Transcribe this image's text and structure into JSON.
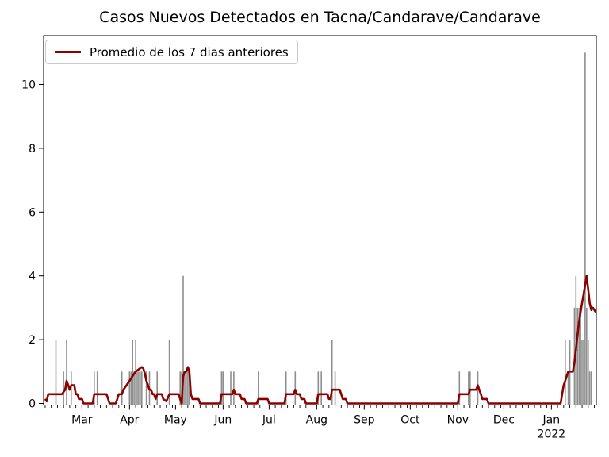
{
  "figure": {
    "title": "Casos Nuevos Detectados en Tacna/Candarave/Candarave"
  },
  "legend": {
    "label": "Promedio de los 7 dias anteriores"
  },
  "chart_data": {
    "type": "bar",
    "overlay_type": "line",
    "title": "Casos Nuevos Detectados en Tacna/Candarave/Candarave",
    "legend_entries": [
      "Promedio de los 7 dias anteriores"
    ],
    "legend_position": "upper left",
    "grid": false,
    "colors": {
      "bars": "#8e8e8e",
      "line": "#8b0000",
      "axes": "#000000"
    },
    "x_axis": {
      "start": "2021-02-04",
      "end": "2022-01-30",
      "major_ticks": [
        {
          "date": "2021-03-01",
          "label": "Mar"
        },
        {
          "date": "2021-04-01",
          "label": "Apr"
        },
        {
          "date": "2021-05-01",
          "label": "May"
        },
        {
          "date": "2021-06-01",
          "label": "Jun"
        },
        {
          "date": "2021-07-01",
          "label": "Jul"
        },
        {
          "date": "2021-08-01",
          "label": "Aug"
        },
        {
          "date": "2021-09-01",
          "label": "Sep"
        },
        {
          "date": "2021-10-01",
          "label": "Oct"
        },
        {
          "date": "2021-11-01",
          "label": "Nov"
        },
        {
          "date": "2021-12-01",
          "label": "Dec"
        },
        {
          "date": "2022-01-01",
          "label": "Jan",
          "year_label": "2022"
        }
      ],
      "minor_tick_days_of_month": [
        5,
        9,
        13,
        17,
        21,
        25,
        29
      ]
    },
    "y_axis": {
      "ticks": [
        0,
        2,
        4,
        6,
        8,
        10
      ],
      "lim": [
        -0.1,
        11.55
      ]
    },
    "series": [
      {
        "id": "daily-cases-bars",
        "type": "bar",
        "color": "#8e8e8e",
        "points": [
          [
            "2021-02-12",
            2
          ],
          [
            "2021-02-17",
            1
          ],
          [
            "2021-02-19",
            2
          ],
          [
            "2021-02-22",
            1
          ],
          [
            "2021-03-09",
            1
          ],
          [
            "2021-03-11",
            1
          ],
          [
            "2021-03-27",
            1
          ],
          [
            "2021-04-01",
            1
          ],
          [
            "2021-04-02",
            1
          ],
          [
            "2021-04-03",
            2
          ],
          [
            "2021-04-04",
            1
          ],
          [
            "2021-04-05",
            2
          ],
          [
            "2021-04-06",
            1
          ],
          [
            "2021-04-07",
            1
          ],
          [
            "2021-04-08",
            1
          ],
          [
            "2021-04-09",
            1
          ],
          [
            "2021-04-12",
            1
          ],
          [
            "2021-04-14",
            1
          ],
          [
            "2021-04-19",
            1
          ],
          [
            "2021-04-27",
            2
          ],
          [
            "2021-05-04",
            1
          ],
          [
            "2021-05-05",
            1
          ],
          [
            "2021-05-06",
            4
          ],
          [
            "2021-05-07",
            1
          ],
          [
            "2021-05-08",
            1
          ],
          [
            "2021-05-09",
            1
          ],
          [
            "2021-05-10",
            1
          ],
          [
            "2021-05-31",
            1
          ],
          [
            "2021-06-01",
            1
          ],
          [
            "2021-06-06",
            1
          ],
          [
            "2021-06-08",
            1
          ],
          [
            "2021-06-24",
            1
          ],
          [
            "2021-07-12",
            1
          ],
          [
            "2021-07-18",
            1
          ],
          [
            "2021-08-02",
            1
          ],
          [
            "2021-08-04",
            1
          ],
          [
            "2021-08-11",
            2
          ],
          [
            "2021-08-13",
            1
          ],
          [
            "2021-11-02",
            1
          ],
          [
            "2021-11-08",
            1
          ],
          [
            "2021-11-09",
            1
          ],
          [
            "2021-11-14",
            1
          ],
          [
            "2022-01-10",
            2
          ],
          [
            "2022-01-12",
            1
          ],
          [
            "2022-01-13",
            2
          ],
          [
            "2022-01-16",
            3
          ],
          [
            "2022-01-17",
            4
          ],
          [
            "2022-01-18",
            3
          ],
          [
            "2022-01-19",
            3
          ],
          [
            "2022-01-20",
            3
          ],
          [
            "2022-01-21",
            2
          ],
          [
            "2022-01-22",
            2
          ],
          [
            "2022-01-23",
            11
          ],
          [
            "2022-01-24",
            3
          ],
          [
            "2022-01-25",
            2
          ],
          [
            "2022-01-26",
            1
          ],
          [
            "2022-01-27",
            1
          ]
        ]
      },
      {
        "id": "avg-7-day-line",
        "name": "Promedio de los 7 dias anteriores",
        "type": "line",
        "color": "#8b0000",
        "points": [
          [
            "2021-02-05",
            0.14
          ],
          [
            "2021-02-06",
            0.07
          ],
          [
            "2021-02-07",
            0.29
          ],
          [
            "2021-02-16",
            0.29
          ],
          [
            "2021-02-18",
            0.43
          ],
          [
            "2021-02-19",
            0.71
          ],
          [
            "2021-02-20",
            0.57
          ],
          [
            "2021-02-21",
            0.43
          ],
          [
            "2021-02-22",
            0.57
          ],
          [
            "2021-02-24",
            0.57
          ],
          [
            "2021-02-25",
            0.29
          ],
          [
            "2021-02-26",
            0.29
          ],
          [
            "2021-02-27",
            0.14
          ],
          [
            "2021-03-01",
            0.14
          ],
          [
            "2021-03-02",
            0.0
          ],
          [
            "2021-03-08",
            0.0
          ],
          [
            "2021-03-09",
            0.29
          ],
          [
            "2021-03-17",
            0.29
          ],
          [
            "2021-03-18",
            0.14
          ],
          [
            "2021-03-19",
            0.0
          ],
          [
            "2021-03-23",
            0.0
          ],
          [
            "2021-03-24",
            0.14
          ],
          [
            "2021-03-25",
            0.29
          ],
          [
            "2021-03-27",
            0.29
          ],
          [
            "2021-03-28",
            0.43
          ],
          [
            "2021-03-30",
            0.57
          ],
          [
            "2021-04-01",
            0.71
          ],
          [
            "2021-04-03",
            0.86
          ],
          [
            "2021-04-05",
            1.0
          ],
          [
            "2021-04-07",
            1.07
          ],
          [
            "2021-04-09",
            1.14
          ],
          [
            "2021-04-10",
            1.1
          ],
          [
            "2021-04-11",
            0.93
          ],
          [
            "2021-04-12",
            0.71
          ],
          [
            "2021-04-13",
            0.57
          ],
          [
            "2021-04-14",
            0.43
          ],
          [
            "2021-04-15",
            0.43
          ],
          [
            "2021-04-16",
            0.29
          ],
          [
            "2021-04-17",
            0.29
          ],
          [
            "2021-04-18",
            0.14
          ],
          [
            "2021-04-19",
            0.29
          ],
          [
            "2021-04-22",
            0.29
          ],
          [
            "2021-04-23",
            0.14
          ],
          [
            "2021-04-25",
            0.07
          ],
          [
            "2021-04-27",
            0.29
          ],
          [
            "2021-05-03",
            0.29
          ],
          [
            "2021-05-04",
            0.14
          ],
          [
            "2021-05-05",
            0.0
          ],
          [
            "2021-05-06",
            0.86
          ],
          [
            "2021-05-07",
            1.0
          ],
          [
            "2021-05-08",
            1.0
          ],
          [
            "2021-05-09",
            1.14
          ],
          [
            "2021-05-10",
            1.0
          ],
          [
            "2021-05-11",
            0.29
          ],
          [
            "2021-05-12",
            0.14
          ],
          [
            "2021-05-16",
            0.14
          ],
          [
            "2021-05-17",
            0.0
          ],
          [
            "2021-05-30",
            0.0
          ],
          [
            "2021-05-31",
            0.29
          ],
          [
            "2021-06-07",
            0.29
          ],
          [
            "2021-06-08",
            0.43
          ],
          [
            "2021-06-09",
            0.29
          ],
          [
            "2021-06-12",
            0.29
          ],
          [
            "2021-06-13",
            0.14
          ],
          [
            "2021-06-15",
            0.14
          ],
          [
            "2021-06-16",
            0.0
          ],
          [
            "2021-06-23",
            0.0
          ],
          [
            "2021-06-24",
            0.14
          ],
          [
            "2021-06-30",
            0.14
          ],
          [
            "2021-07-01",
            0.0
          ],
          [
            "2021-07-11",
            0.0
          ],
          [
            "2021-07-12",
            0.29
          ],
          [
            "2021-07-17",
            0.29
          ],
          [
            "2021-07-18",
            0.43
          ],
          [
            "2021-07-19",
            0.29
          ],
          [
            "2021-07-21",
            0.29
          ],
          [
            "2021-07-22",
            0.14
          ],
          [
            "2021-07-24",
            0.14
          ],
          [
            "2021-07-25",
            0.0
          ],
          [
            "2021-08-01",
            0.0
          ],
          [
            "2021-08-02",
            0.29
          ],
          [
            "2021-08-08",
            0.29
          ],
          [
            "2021-08-09",
            0.14
          ],
          [
            "2021-08-10",
            0.14
          ],
          [
            "2021-08-11",
            0.43
          ],
          [
            "2021-08-16",
            0.43
          ],
          [
            "2021-08-17",
            0.29
          ],
          [
            "2021-08-18",
            0.14
          ],
          [
            "2021-08-20",
            0.14
          ],
          [
            "2021-08-21",
            0.0
          ],
          [
            "2021-11-01",
            0.0
          ],
          [
            "2021-11-02",
            0.29
          ],
          [
            "2021-11-08",
            0.29
          ],
          [
            "2021-11-09",
            0.43
          ],
          [
            "2021-11-13",
            0.43
          ],
          [
            "2021-11-14",
            0.57
          ],
          [
            "2021-11-15",
            0.43
          ],
          [
            "2021-11-16",
            0.29
          ],
          [
            "2021-11-17",
            0.14
          ],
          [
            "2021-11-20",
            0.14
          ],
          [
            "2021-11-21",
            0.0
          ],
          [
            "2022-01-07",
            0.0
          ],
          [
            "2022-01-08",
            0.29
          ],
          [
            "2022-01-09",
            0.57
          ],
          [
            "2022-01-10",
            0.71
          ],
          [
            "2022-01-11",
            0.86
          ],
          [
            "2022-01-12",
            1.0
          ],
          [
            "2022-01-15",
            1.0
          ],
          [
            "2022-01-16",
            1.29
          ],
          [
            "2022-01-17",
            1.71
          ],
          [
            "2022-01-18",
            2.14
          ],
          [
            "2022-01-19",
            2.57
          ],
          [
            "2022-01-20",
            2.86
          ],
          [
            "2022-01-21",
            3.14
          ],
          [
            "2022-01-22",
            3.43
          ],
          [
            "2022-01-23",
            3.71
          ],
          [
            "2022-01-24",
            4.0
          ],
          [
            "2022-01-25",
            3.57
          ],
          [
            "2022-01-26",
            3.14
          ],
          [
            "2022-01-27",
            2.93
          ],
          [
            "2022-01-28",
            3.0
          ],
          [
            "2022-01-29",
            2.93
          ],
          [
            "2022-01-30",
            2.86
          ]
        ]
      }
    ]
  }
}
